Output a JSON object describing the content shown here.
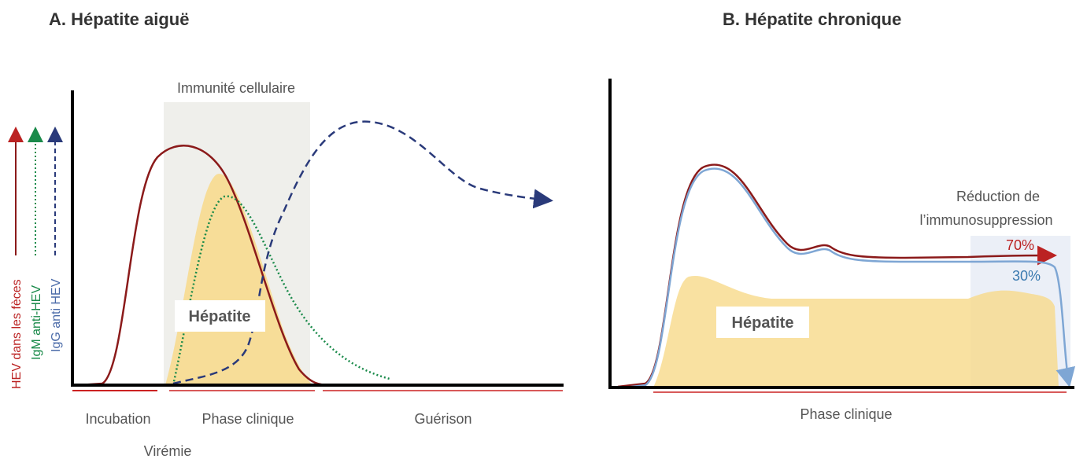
{
  "panels": [
    {
      "title": "A. Hépatite aiguë",
      "shade_label": "Immunité cellulaire",
      "y_labels": [
        "HEV dans les fèces",
        "IgM anti-HEV",
        "IgG anti HEV"
      ],
      "box_label": "Hépatite",
      "phases": [
        "Incubation",
        "Phase clinique",
        "Guérison",
        "Virémie"
      ]
    },
    {
      "title": "B. Hépatite chronique",
      "note": [
        "Réduction de",
        "l’immunosuppression"
      ],
      "percentages": [
        "70%",
        "30%"
      ],
      "box_label": "Hépatite",
      "phase": "Phase clinique"
    }
  ]
}
